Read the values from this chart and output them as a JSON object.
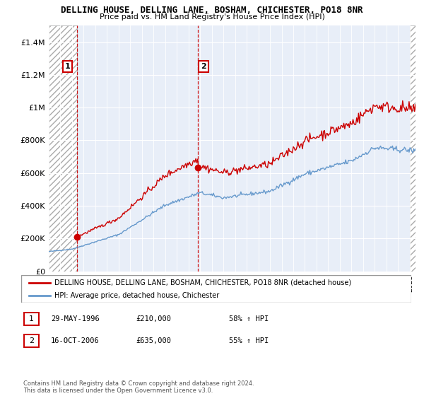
{
  "title": "DELLING HOUSE, DELLING LANE, BOSHAM, CHICHESTER, PO18 8NR",
  "subtitle": "Price paid vs. HM Land Registry's House Price Index (HPI)",
  "legend_line1": "DELLING HOUSE, DELLING LANE, BOSHAM, CHICHESTER, PO18 8NR (detached house)",
  "legend_line2": "HPI: Average price, detached house, Chichester",
  "sale1_label": "1",
  "sale1_date": "29-MAY-1996",
  "sale1_price": "£210,000",
  "sale1_hpi": "58% ↑ HPI",
  "sale1_year": 1996.41,
  "sale1_value": 210000,
  "sale2_label": "2",
  "sale2_date": "16-OCT-2006",
  "sale2_price": "£635,000",
  "sale2_hpi": "55% ↑ HPI",
  "sale2_year": 2006.79,
  "sale2_value": 635000,
  "price_line_color": "#cc0000",
  "hpi_line_color": "#6699cc",
  "background_color": "#e8eef8",
  "ylim": [
    0,
    1500000
  ],
  "xlim_start": 1994,
  "xlim_end": 2025.5,
  "footer": "Contains HM Land Registry data © Crown copyright and database right 2024.\nThis data is licensed under the Open Government Licence v3.0."
}
